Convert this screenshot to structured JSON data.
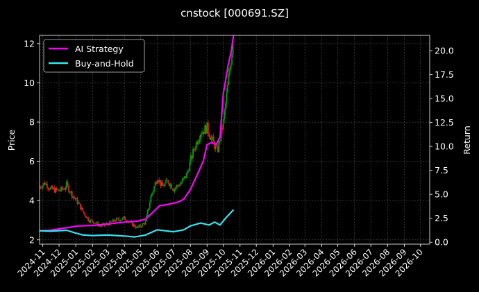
{
  "chart_data": {
    "type": "line",
    "title": "cnstock [000691.SZ]",
    "ylabel_left": "Price",
    "ylabel_right": "Return",
    "x_start": "2024-10-26",
    "x_end": "2026-10-18",
    "x_ticks": [
      "2024-11",
      "2024-12",
      "2025-01",
      "2025-02",
      "2025-03",
      "2025-04",
      "2025-05",
      "2025-06",
      "2025-07",
      "2025-08",
      "2025-09",
      "2025-10",
      "2025-11",
      "2025-12",
      "2026-01",
      "2026-02",
      "2026-03",
      "2026-04",
      "2026-05",
      "2026-06",
      "2026-07",
      "2026-08",
      "2026-09",
      "2026-10"
    ],
    "ylim_left": [
      1.78,
      12.42
    ],
    "yticks_left": [
      2,
      4,
      6,
      8,
      10,
      12
    ],
    "ylim_right": [
      -0.2,
      21.6
    ],
    "yticks_right": [
      "0.0",
      "2.5",
      "5.0",
      "7.5",
      "10.0",
      "12.5",
      "15.0",
      "17.5",
      "20.0"
    ],
    "grid": true,
    "legend_position": "top-left",
    "series": [
      {
        "name": "AI Strategy",
        "color": "#ff00ff",
        "axis": "right",
        "points": [
          [
            "2024-10-26",
            1.2
          ],
          [
            "2024-11-15",
            1.25
          ],
          [
            "2024-12-01",
            1.4
          ],
          [
            "2024-12-20",
            1.55
          ],
          [
            "2025-01-05",
            1.7
          ],
          [
            "2025-02-01",
            1.75
          ],
          [
            "2025-03-01",
            1.9
          ],
          [
            "2025-04-01",
            2.1
          ],
          [
            "2025-04-25",
            2.2
          ],
          [
            "2025-05-10",
            2.4
          ],
          [
            "2025-05-25",
            3.2
          ],
          [
            "2025-06-05",
            3.8
          ],
          [
            "2025-06-25",
            4.0
          ],
          [
            "2025-07-10",
            4.2
          ],
          [
            "2025-07-20",
            4.5
          ],
          [
            "2025-08-01",
            5.5
          ],
          [
            "2025-08-15",
            7.2
          ],
          [
            "2025-08-25",
            8.5
          ],
          [
            "2025-09-01",
            10.2
          ],
          [
            "2025-09-10",
            10.4
          ],
          [
            "2025-09-18",
            10.2
          ],
          [
            "2025-09-25",
            11.0
          ],
          [
            "2025-10-01",
            15.5
          ],
          [
            "2025-10-10",
            18.5
          ],
          [
            "2025-10-16",
            20.0
          ],
          [
            "2025-10-20",
            21.6
          ]
        ]
      },
      {
        "name": "Buy-and-Hold",
        "color": "#33e5f2",
        "axis": "right",
        "points": [
          [
            "2024-10-26",
            1.2
          ],
          [
            "2024-11-15",
            1.15
          ],
          [
            "2024-12-15",
            1.25
          ],
          [
            "2025-01-01",
            0.95
          ],
          [
            "2025-01-15",
            0.75
          ],
          [
            "2025-02-01",
            0.7
          ],
          [
            "2025-03-01",
            0.75
          ],
          [
            "2025-04-01",
            0.65
          ],
          [
            "2025-04-20",
            0.55
          ],
          [
            "2025-05-10",
            0.75
          ],
          [
            "2025-06-01",
            1.3
          ],
          [
            "2025-06-15",
            1.2
          ],
          [
            "2025-07-01",
            1.1
          ],
          [
            "2025-07-20",
            1.3
          ],
          [
            "2025-08-01",
            1.7
          ],
          [
            "2025-08-20",
            2.0
          ],
          [
            "2025-09-05",
            1.8
          ],
          [
            "2025-09-15",
            2.1
          ],
          [
            "2025-09-25",
            1.8
          ],
          [
            "2025-10-05",
            2.5
          ],
          [
            "2025-10-15",
            3.1
          ],
          [
            "2025-10-20",
            3.4
          ]
        ]
      }
    ],
    "candles": {
      "up_color": "#00a000",
      "down_color": "#e02020",
      "axis": "left",
      "points": [
        [
          "2024-10-26",
          4.7
        ],
        [
          "2024-11-05",
          4.9
        ],
        [
          "2024-11-15",
          4.6
        ],
        [
          "2024-11-30",
          4.5
        ],
        [
          "2024-12-10",
          4.6
        ],
        [
          "2024-12-15",
          4.8
        ],
        [
          "2024-12-25",
          4.3
        ],
        [
          "2025-01-05",
          3.9
        ],
        [
          "2025-01-15",
          3.4
        ],
        [
          "2025-01-25",
          3.0
        ],
        [
          "2025-02-05",
          2.9
        ],
        [
          "2025-02-15",
          2.7
        ],
        [
          "2025-03-01",
          2.8
        ],
        [
          "2025-03-15",
          3.0
        ],
        [
          "2025-04-01",
          3.1
        ],
        [
          "2025-04-15",
          2.8
        ],
        [
          "2025-04-25",
          2.6
        ],
        [
          "2025-05-10",
          2.9
        ],
        [
          "2025-05-20",
          4.2
        ],
        [
          "2025-06-01",
          5.2
        ],
        [
          "2025-06-10",
          4.7
        ],
        [
          "2025-06-20",
          5.0
        ],
        [
          "2025-07-01",
          4.6
        ],
        [
          "2025-07-15",
          4.9
        ],
        [
          "2025-07-25",
          5.3
        ],
        [
          "2025-08-01",
          6.0
        ],
        [
          "2025-08-10",
          6.8
        ],
        [
          "2025-08-20",
          7.5
        ],
        [
          "2025-09-01",
          7.7
        ],
        [
          "2025-09-10",
          7.1
        ],
        [
          "2025-09-20",
          6.5
        ],
        [
          "2025-10-01",
          8.0
        ],
        [
          "2025-10-10",
          10.0
        ],
        [
          "2025-10-20",
          12.4
        ]
      ]
    }
  }
}
